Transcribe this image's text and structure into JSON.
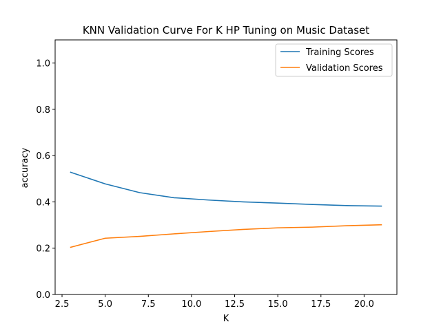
{
  "chart_data": {
    "type": "line",
    "title": "KNN Validation Curve For K HP Tuning on Music Dataset",
    "xlabel": "K",
    "ylabel": "accuracy",
    "xlim": [
      2.1,
      21.9
    ],
    "ylim": [
      0.0,
      1.1
    ],
    "x": [
      3,
      5,
      7,
      9,
      11,
      13,
      15,
      17,
      19,
      21
    ],
    "x_ticks": [
      2.5,
      5.0,
      7.5,
      10.0,
      12.5,
      15.0,
      17.5,
      20.0
    ],
    "x_tick_labels": [
      "2.5",
      "5.0",
      "7.5",
      "10.0",
      "12.5",
      "15.0",
      "17.5",
      "20.0"
    ],
    "y_ticks": [
      0.0,
      0.2,
      0.4,
      0.6,
      0.8,
      1.0
    ],
    "y_tick_labels": [
      "0.0",
      "0.2",
      "0.4",
      "0.6",
      "0.8",
      "1.0"
    ],
    "grid": false,
    "legend_position": "top-right",
    "series": [
      {
        "name": "Training Scores",
        "color": "#1f77b4",
        "values": [
          0.528,
          0.478,
          0.44,
          0.418,
          0.408,
          0.4,
          0.395,
          0.389,
          0.384,
          0.382
        ]
      },
      {
        "name": "Validation Scores",
        "color": "#ff7f0e",
        "values": [
          0.204,
          0.243,
          0.251,
          0.262,
          0.272,
          0.281,
          0.288,
          0.291,
          0.297,
          0.301
        ]
      }
    ]
  }
}
